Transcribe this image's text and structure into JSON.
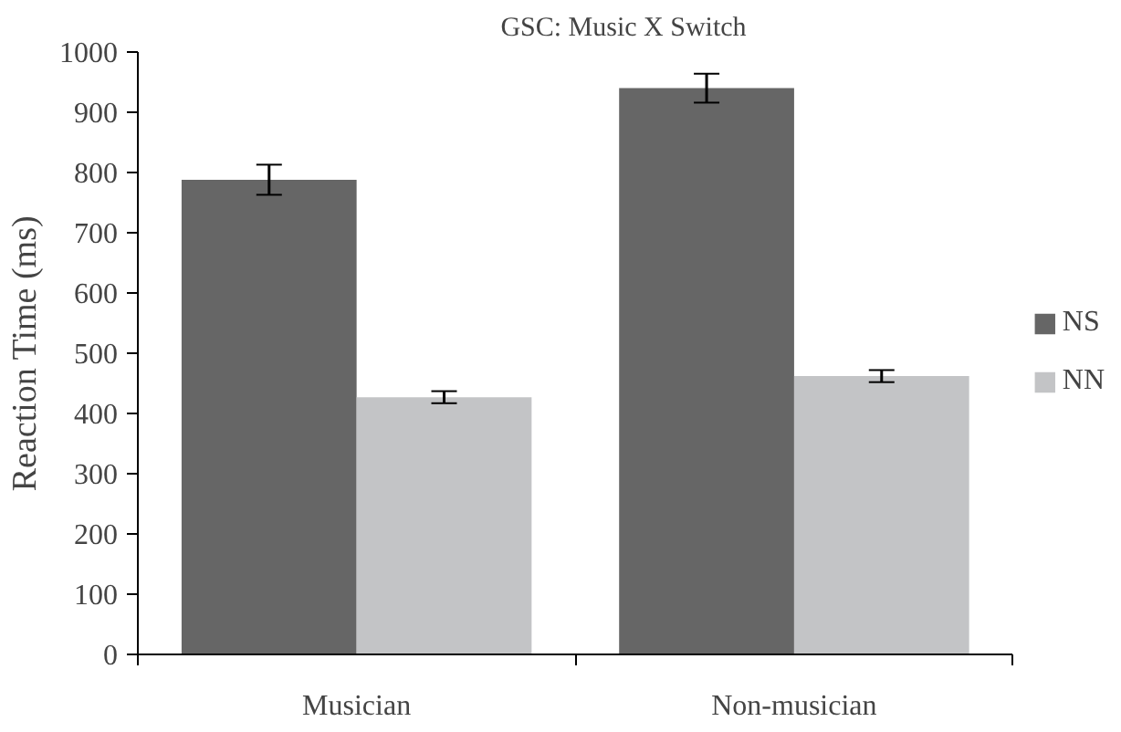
{
  "chart_data": {
    "type": "bar",
    "title": "GSC: Music X Switch",
    "ylabel": "Reaction Time (ms)",
    "categories": [
      "Musician",
      "Non-musician"
    ],
    "series": [
      {
        "name": "NS",
        "color": "#666666",
        "values": [
          788,
          940
        ],
        "errors": [
          25,
          24
        ]
      },
      {
        "name": "NN",
        "color": "#c3c4c6",
        "values": [
          427,
          462
        ],
        "errors": [
          10,
          10
        ]
      }
    ],
    "ylim": [
      0,
      1000
    ],
    "yticks": [
      0,
      100,
      200,
      300,
      400,
      500,
      600,
      700,
      800,
      900,
      1000
    ],
    "grid": false,
    "legend": "right"
  }
}
